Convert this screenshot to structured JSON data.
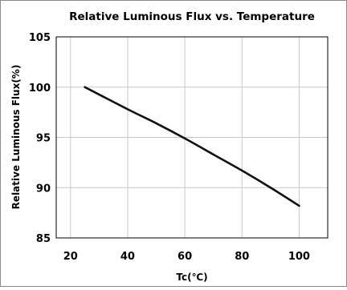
{
  "chart_data": {
    "type": "line",
    "title": "Relative Luminous Flux vs. Temperature",
    "xlabel": "Tc(℃)",
    "ylabel": "Relative Luminous Flux(%)",
    "xlim": [
      15,
      110
    ],
    "ylim": [
      85,
      105
    ],
    "x_ticks": [
      20,
      40,
      60,
      80,
      100
    ],
    "y_ticks": [
      85,
      90,
      95,
      100,
      105
    ],
    "x_tick_labels": [
      "20",
      "40",
      "60",
      "80",
      "100"
    ],
    "y_tick_labels": [
      "85",
      "90",
      "95",
      "100",
      "105"
    ],
    "grid": true,
    "legend": "none",
    "series": [
      {
        "color": "#111111",
        "x": [
          25,
          40,
          50,
          60,
          70,
          80,
          90,
          100
        ],
        "y": [
          100.0,
          97.8,
          96.4,
          94.9,
          93.3,
          91.7,
          90.0,
          88.2
        ]
      }
    ]
  }
}
